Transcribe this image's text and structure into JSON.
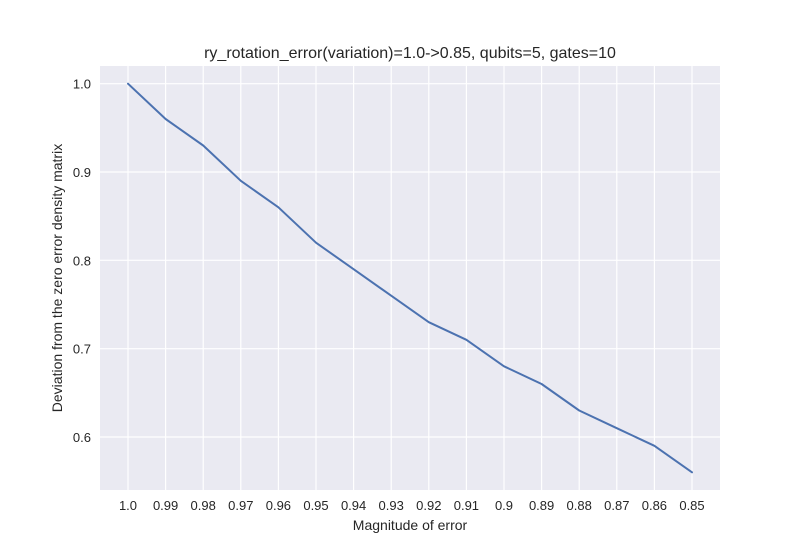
{
  "chart_data": {
    "type": "line",
    "title": "ry_rotation_error(variation)=1.0->0.85, qubits=5, gates=10",
    "xlabel": "Magnitude of error",
    "ylabel": "Deviation from the zero error density matrix",
    "categories": [
      "1.0",
      "0.99",
      "0.98",
      "0.97",
      "0.96",
      "0.95",
      "0.94",
      "0.93",
      "0.92",
      "0.91",
      "0.9",
      "0.89",
      "0.88",
      "0.87",
      "0.86",
      "0.85"
    ],
    "yticks": [
      "0.6",
      "0.7",
      "0.8",
      "0.9",
      "1.0"
    ],
    "ylim": [
      0.54,
      1.02
    ],
    "series": [
      {
        "values": [
          1.0,
          0.96,
          0.93,
          0.89,
          0.86,
          0.82,
          0.79,
          0.76,
          0.73,
          0.71,
          0.68,
          0.66,
          0.63,
          0.61,
          0.59,
          0.56
        ]
      }
    ],
    "grid": true,
    "legend": "none",
    "colors": {
      "line": "#4c72b0",
      "plot_bg": "#eaeaf2",
      "grid": "#ffffff",
      "text": "#262626"
    }
  }
}
